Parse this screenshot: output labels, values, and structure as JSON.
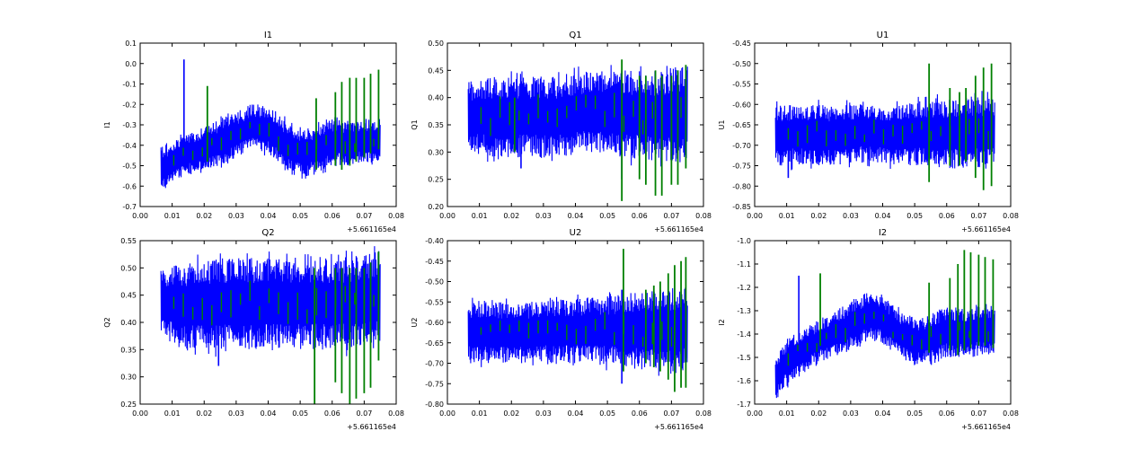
{
  "chart_data": [
    {
      "type": "line",
      "title": "I1",
      "ylabel": "I1",
      "xlabel": "",
      "offset_label": "+5.661165e4",
      "xlim": [
        0.0,
        0.08
      ],
      "ylim": [
        -0.7,
        0.1
      ],
      "x_ticks": [
        "0.00",
        "0.01",
        "0.02",
        "0.03",
        "0.04",
        "0.05",
        "0.06",
        "0.07",
        "0.08"
      ],
      "y_ticks": [
        "-0.7",
        "-0.6",
        "-0.5",
        "-0.4",
        "-0.3",
        "-0.2",
        "-0.1",
        "0.0",
        "0.1"
      ],
      "colors": {
        "series1": "#0000ff",
        "series2": "#008000"
      },
      "series": [
        {
          "values": {
            "x_start": 0.0065,
            "x_end": 0.075,
            "envelope_x": [
              0.007,
              0.01,
              0.015,
              0.02,
              0.025,
              0.03,
              0.035,
              0.04,
              0.045,
              0.05,
              0.055,
              0.06,
              0.065,
              0.07,
              0.075
            ],
            "envelope_upper": [
              -0.42,
              -0.38,
              -0.34,
              -0.31,
              -0.27,
              -0.24,
              -0.2,
              -0.2,
              -0.27,
              -0.31,
              -0.31,
              -0.27,
              -0.28,
              -0.27,
              -0.28
            ],
            "envelope_lower": [
              -0.63,
              -0.58,
              -0.54,
              -0.52,
              -0.5,
              -0.46,
              -0.42,
              -0.44,
              -0.52,
              -0.56,
              -0.54,
              -0.5,
              -0.5,
              -0.48,
              -0.49
            ],
            "spikes": [
              [
                0.0137,
                0.02,
                -0.4
              ]
            ]
          }
        },
        {
          "values": {
            "spikes": [
              [
                0.021,
                -0.11,
                -0.48
              ],
              [
                0.055,
                -0.17,
                -0.52
              ],
              [
                0.061,
                -0.14,
                -0.5
              ],
              [
                0.063,
                -0.09,
                -0.52
              ],
              [
                0.0655,
                -0.07,
                -0.5
              ],
              [
                0.0675,
                -0.07,
                -0.48
              ],
              [
                0.07,
                -0.07,
                -0.46
              ],
              [
                0.072,
                -0.05,
                -0.44
              ],
              [
                0.0745,
                -0.03,
                -0.42
              ]
            ]
          }
        }
      ]
    },
    {
      "type": "line",
      "title": "Q1",
      "ylabel": "Q1",
      "xlabel": "",
      "offset_label": "+5.661165e4",
      "xlim": [
        0.0,
        0.08
      ],
      "ylim": [
        0.2,
        0.5
      ],
      "x_ticks": [
        "0.00",
        "0.01",
        "0.02",
        "0.03",
        "0.04",
        "0.05",
        "0.06",
        "0.07",
        "0.08"
      ],
      "y_ticks": [
        "0.20",
        "0.25",
        "0.30",
        "0.35",
        "0.40",
        "0.45",
        "0.50"
      ],
      "colors": {
        "series1": "#0000ff",
        "series2": "#008000"
      },
      "series": [
        {
          "values": {
            "x_start": 0.0065,
            "x_end": 0.075,
            "envelope_x": [
              0.007,
              0.015,
              0.025,
              0.035,
              0.045,
              0.055,
              0.065,
              0.075
            ],
            "envelope_upper": [
              0.43,
              0.44,
              0.44,
              0.44,
              0.45,
              0.45,
              0.45,
              0.46
            ],
            "envelope_lower": [
              0.3,
              0.29,
              0.29,
              0.29,
              0.3,
              0.29,
              0.28,
              0.28
            ],
            "spikes": [
              [
                0.023,
                0.43,
                0.27
              ],
              [
                0.0545,
                0.45,
                0.25
              ]
            ]
          }
        },
        {
          "values": {
            "spikes": [
              [
                0.021,
                0.4,
                0.3
              ],
              [
                0.0545,
                0.47,
                0.21
              ],
              [
                0.06,
                0.44,
                0.25
              ],
              [
                0.062,
                0.44,
                0.24
              ],
              [
                0.065,
                0.45,
                0.22
              ],
              [
                0.067,
                0.44,
                0.22
              ],
              [
                0.07,
                0.44,
                0.24
              ],
              [
                0.072,
                0.45,
                0.24
              ],
              [
                0.0745,
                0.46,
                0.27
              ]
            ]
          }
        }
      ]
    },
    {
      "type": "line",
      "title": "U1",
      "ylabel": "U1",
      "xlabel": "",
      "offset_label": "+5.661165e4",
      "xlim": [
        0.0,
        0.08
      ],
      "ylim": [
        -0.85,
        -0.45
      ],
      "x_ticks": [
        "0.00",
        "0.01",
        "0.02",
        "0.03",
        "0.04",
        "0.05",
        "0.06",
        "0.07",
        "0.08"
      ],
      "y_ticks": [
        "-0.85",
        "-0.80",
        "-0.75",
        "-0.70",
        "-0.65",
        "-0.60",
        "-0.55",
        "-0.50",
        "-0.45"
      ],
      "colors": {
        "series1": "#0000ff",
        "series2": "#008000"
      },
      "series": [
        {
          "values": {
            "x_start": 0.0065,
            "x_end": 0.075,
            "envelope_x": [
              0.007,
              0.015,
              0.025,
              0.035,
              0.045,
              0.055,
              0.065,
              0.075
            ],
            "envelope_upper": [
              -0.6,
              -0.6,
              -0.6,
              -0.6,
              -0.6,
              -0.59,
              -0.58,
              -0.58
            ],
            "envelope_lower": [
              -0.75,
              -0.75,
              -0.75,
              -0.74,
              -0.75,
              -0.75,
              -0.76,
              -0.75
            ],
            "spikes": [
              [
                0.0105,
                -0.62,
                -0.78
              ]
            ]
          }
        },
        {
          "values": {
            "spikes": [
              [
                0.0545,
                -0.5,
                -0.79
              ],
              [
                0.061,
                -0.56,
                -0.75
              ],
              [
                0.064,
                -0.57,
                -0.75
              ],
              [
                0.066,
                -0.56,
                -0.74
              ],
              [
                0.069,
                -0.53,
                -0.78
              ],
              [
                0.0715,
                -0.51,
                -0.81
              ],
              [
                0.074,
                -0.5,
                -0.8
              ]
            ]
          }
        }
      ]
    },
    {
      "type": "line",
      "title": "Q2",
      "ylabel": "Q2",
      "xlabel": "",
      "offset_label": "+5.661165e4",
      "xlim": [
        0.0,
        0.08
      ],
      "ylim": [
        0.25,
        0.55
      ],
      "x_ticks": [
        "0.00",
        "0.01",
        "0.02",
        "0.03",
        "0.04",
        "0.05",
        "0.06",
        "0.07",
        "0.08"
      ],
      "y_ticks": [
        "0.25",
        "0.30",
        "0.35",
        "0.40",
        "0.45",
        "0.50",
        "0.55"
      ],
      "colors": {
        "series1": "#0000ff",
        "series2": "#008000"
      },
      "series": [
        {
          "values": {
            "x_start": 0.0065,
            "x_end": 0.075,
            "envelope_x": [
              0.007,
              0.015,
              0.025,
              0.035,
              0.045,
              0.055,
              0.065,
              0.075
            ],
            "envelope_upper": [
              0.5,
              0.51,
              0.52,
              0.52,
              0.52,
              0.52,
              0.52,
              0.53
            ],
            "envelope_lower": [
              0.37,
              0.35,
              0.35,
              0.35,
              0.35,
              0.35,
              0.35,
              0.36
            ],
            "spikes": [
              [
                0.0245,
                0.51,
                0.32
              ]
            ]
          }
        },
        {
          "values": {
            "spikes": [
              [
                0.0545,
                0.5,
                0.25
              ],
              [
                0.061,
                0.5,
                0.29
              ],
              [
                0.063,
                0.5,
                0.27
              ],
              [
                0.0655,
                0.5,
                0.25
              ],
              [
                0.0675,
                0.5,
                0.26
              ],
              [
                0.07,
                0.5,
                0.27
              ],
              [
                0.072,
                0.51,
                0.28
              ],
              [
                0.0745,
                0.53,
                0.33
              ]
            ]
          }
        }
      ]
    },
    {
      "type": "line",
      "title": "U2",
      "ylabel": "U2",
      "xlabel": "",
      "offset_label": "+5.661165e4",
      "xlim": [
        0.0,
        0.08
      ],
      "ylim": [
        -0.8,
        -0.4
      ],
      "x_ticks": [
        "0.00",
        "0.01",
        "0.02",
        "0.03",
        "0.04",
        "0.05",
        "0.06",
        "0.07",
        "0.08"
      ],
      "y_ticks": [
        "-0.80",
        "-0.75",
        "-0.70",
        "-0.65",
        "-0.60",
        "-0.55",
        "-0.50",
        "-0.45",
        "-0.40"
      ],
      "colors": {
        "series1": "#0000ff",
        "series2": "#008000"
      },
      "series": [
        {
          "values": {
            "x_start": 0.0065,
            "x_end": 0.075,
            "envelope_x": [
              0.007,
              0.015,
              0.025,
              0.035,
              0.045,
              0.055,
              0.065,
              0.075
            ],
            "envelope_upper": [
              -0.55,
              -0.55,
              -0.55,
              -0.54,
              -0.54,
              -0.53,
              -0.52,
              -0.51
            ],
            "envelope_lower": [
              -0.7,
              -0.7,
              -0.7,
              -0.7,
              -0.7,
              -0.71,
              -0.72,
              -0.72
            ],
            "spikes": [
              [
                0.0545,
                -0.52,
                -0.75
              ]
            ]
          }
        },
        {
          "values": {
            "spikes": [
              [
                0.055,
                -0.42,
                -0.72
              ],
              [
                0.062,
                -0.52,
                -0.7
              ],
              [
                0.0645,
                -0.51,
                -0.71
              ],
              [
                0.0665,
                -0.5,
                -0.72
              ],
              [
                0.069,
                -0.48,
                -0.74
              ],
              [
                0.071,
                -0.46,
                -0.77
              ],
              [
                0.073,
                -0.45,
                -0.76
              ],
              [
                0.0745,
                -0.44,
                -0.76
              ]
            ]
          }
        }
      ]
    },
    {
      "type": "line",
      "title": "I2",
      "ylabel": "I2",
      "xlabel": "",
      "offset_label": "+5.661165e4",
      "xlim": [
        0.0,
        0.08
      ],
      "ylim": [
        -1.7,
        -1.0
      ],
      "x_ticks": [
        "0.00",
        "0.01",
        "0.02",
        "0.03",
        "0.04",
        "0.05",
        "0.06",
        "0.07",
        "0.08"
      ],
      "y_ticks": [
        "-1.7",
        "-1.6",
        "-1.5",
        "-1.4",
        "-1.3",
        "-1.2",
        "-1.1",
        "-1.0"
      ],
      "colors": {
        "series1": "#0000ff",
        "series2": "#008000"
      },
      "series": [
        {
          "values": {
            "x_start": 0.0065,
            "x_end": 0.075,
            "envelope_x": [
              0.007,
              0.01,
              0.015,
              0.02,
              0.025,
              0.03,
              0.035,
              0.04,
              0.045,
              0.05,
              0.055,
              0.06,
              0.065,
              0.07,
              0.075
            ],
            "envelope_upper": [
              -1.48,
              -1.42,
              -1.38,
              -1.34,
              -1.3,
              -1.26,
              -1.22,
              -1.23,
              -1.3,
              -1.33,
              -1.32,
              -1.28,
              -1.29,
              -1.28,
              -1.29
            ],
            "envelope_lower": [
              -1.68,
              -1.62,
              -1.56,
              -1.52,
              -1.5,
              -1.47,
              -1.43,
              -1.44,
              -1.5,
              -1.54,
              -1.52,
              -1.5,
              -1.5,
              -1.49,
              -1.49
            ],
            "spikes": [
              [
                0.0138,
                -1.15,
                -1.45
              ]
            ]
          }
        },
        {
          "values": {
            "spikes": [
              [
                0.0205,
                -1.14,
                -1.45
              ],
              [
                0.0545,
                -1.18,
                -1.48
              ],
              [
                0.061,
                -1.16,
                -1.47
              ],
              [
                0.0635,
                -1.1,
                -1.49
              ],
              [
                0.0655,
                -1.04,
                -1.47
              ],
              [
                0.0675,
                -1.05,
                -1.46
              ],
              [
                0.07,
                -1.06,
                -1.45
              ],
              [
                0.072,
                -1.07,
                -1.45
              ],
              [
                0.0745,
                -1.08,
                -1.46
              ]
            ]
          }
        }
      ]
    }
  ]
}
